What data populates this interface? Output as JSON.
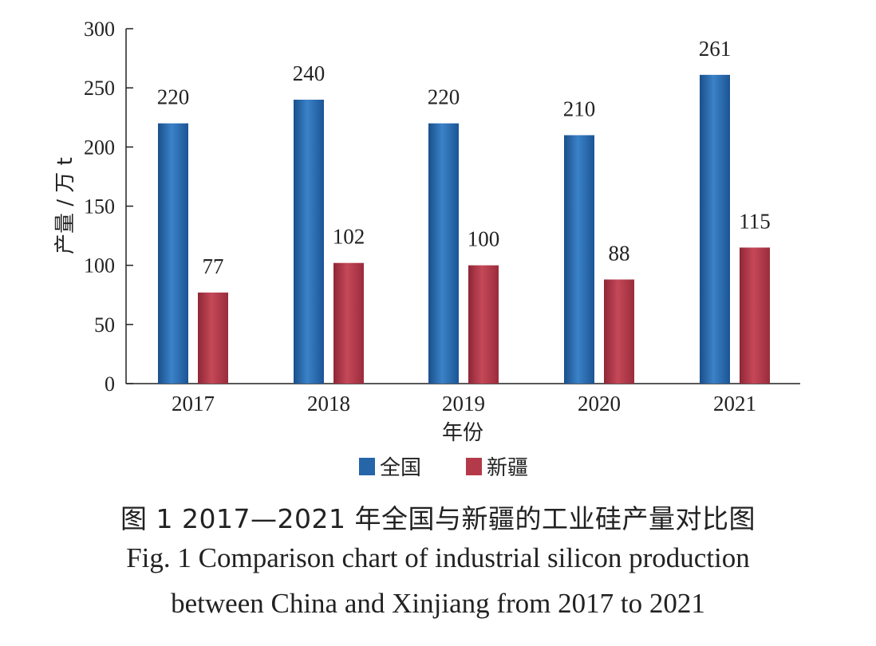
{
  "chart_data": {
    "type": "bar",
    "categories": [
      "2017",
      "2018",
      "2019",
      "2020",
      "2021"
    ],
    "series": [
      {
        "name": "全国",
        "values": [
          220,
          240,
          220,
          210,
          261
        ],
        "color": "#2565a8"
      },
      {
        "name": "新疆",
        "values": [
          77,
          102,
          100,
          88,
          115
        ],
        "color": "#b43a4a"
      }
    ],
    "data_labels": [
      [
        "220",
        "240",
        "220",
        "210",
        "261"
      ],
      [
        "77",
        "102",
        "100",
        "88",
        "115"
      ]
    ],
    "xlabel": "年份",
    "ylabel": "产量 / 万 t",
    "ylim": [
      0,
      300
    ],
    "yticks": [
      0,
      50,
      100,
      150,
      200,
      250,
      300
    ],
    "ytick_labels": [
      "0",
      "50",
      "100",
      "150",
      "200",
      "250",
      "300"
    ],
    "grid": false,
    "legend_position": "bottom"
  },
  "caption": {
    "cn": "图 1  2017—2021 年全国与新疆的工业硅产量对比图",
    "en_line1": "Fig. 1  Comparison chart of industrial silicon production",
    "en_line2": "between China and Xinjiang from 2017 to 2021"
  }
}
